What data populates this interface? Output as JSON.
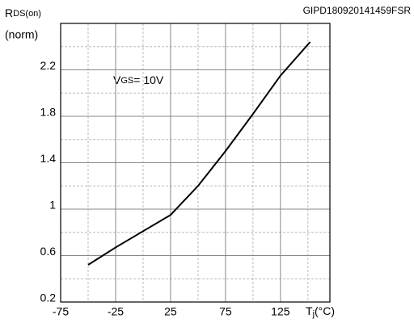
{
  "chart_data": {
    "type": "line",
    "code": "GIPD180920141459FSR",
    "ylabel": {
      "main": "R",
      "sub": "DS(on)",
      "unit": "(norm)"
    },
    "xlabel": {
      "main": "T",
      "sub": "j",
      "unit": "(°C)"
    },
    "annotation": {
      "main": "V",
      "sub": "GS",
      "rest": "= 10V"
    },
    "x": [
      -50,
      -25,
      0,
      25,
      50,
      75,
      100,
      125,
      152
    ],
    "series": [
      {
        "color": "#000000",
        "values": [
          0.52,
          0.67,
          0.81,
          0.95,
          1.2,
          1.5,
          1.82,
          2.15,
          2.44
        ]
      }
    ],
    "xlim": [
      -75,
      170
    ],
    "ylim": [
      0.2,
      2.6
    ],
    "xticks": [
      -75,
      -25,
      25,
      75,
      125
    ],
    "yticks": [
      0.2,
      0.6,
      1,
      1.4,
      1.8,
      2.2
    ],
    "xminorticks": [
      -50,
      0,
      50,
      100,
      150
    ],
    "yminorticks": [
      0.4,
      0.8,
      1.2,
      1.6,
      2,
      2.4
    ],
    "grid": true
  }
}
